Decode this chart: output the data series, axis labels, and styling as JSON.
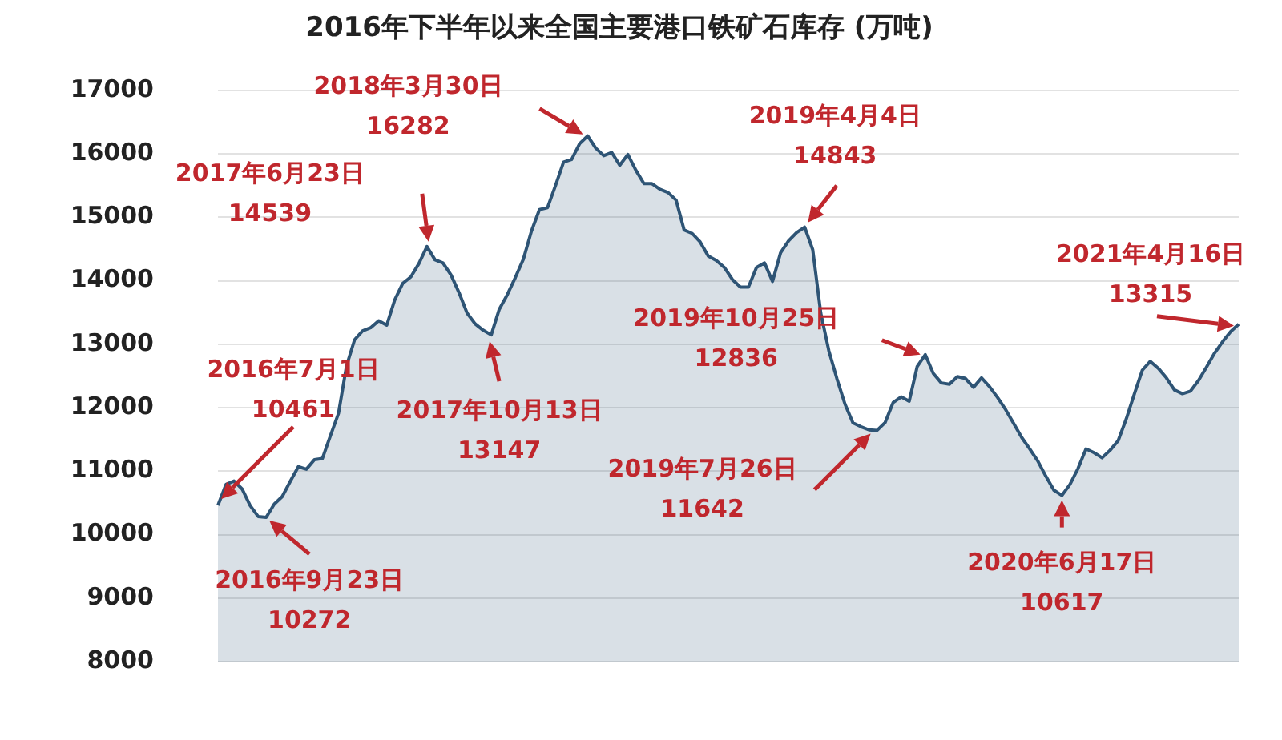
{
  "chart_data": {
    "type": "area",
    "title": "2016年下半年以来全国主要港口铁矿石库存 (万吨)",
    "categories": [
      null,
      null,
      null,
      null,
      null,
      null,
      null,
      null,
      null,
      null,
      null,
      null,
      null,
      null,
      null,
      null,
      null,
      null,
      null,
      null,
      null,
      null,
      null,
      null,
      null,
      null,
      null,
      null,
      null,
      null,
      null,
      null,
      null,
      null,
      null,
      null,
      null,
      null,
      null,
      null,
      null,
      null,
      null,
      null,
      null,
      null,
      null,
      null,
      null,
      null,
      null,
      null,
      null,
      null,
      null,
      null,
      null,
      null,
      null,
      null,
      null,
      null,
      null,
      null,
      null,
      null,
      null,
      null,
      null,
      null,
      null,
      null,
      null,
      null,
      null,
      null,
      null,
      null,
      null,
      null,
      null,
      null,
      null,
      null,
      null,
      null,
      null,
      null,
      null,
      null,
      null,
      null,
      null,
      null,
      null,
      null,
      null,
      null,
      null,
      null,
      null,
      null,
      null,
      null,
      null,
      null,
      null,
      null,
      null,
      null,
      null,
      null,
      null,
      null,
      null,
      null,
      null,
      null,
      null,
      null,
      null,
      null,
      null,
      null,
      null,
      null,
      null,
      null
    ],
    "series": [
      {
        "color": "#2e5475",
        "values": [
          10461,
          10790,
          10845,
          10720,
          10460,
          10285,
          10272,
          10480,
          10600,
          10840,
          11070,
          11030,
          11180,
          11200,
          11560,
          11910,
          12660,
          13070,
          13210,
          13260,
          13370,
          13300,
          13700,
          13960,
          14060,
          14270,
          14539,
          14330,
          14280,
          14090,
          13810,
          13490,
          13320,
          13220,
          13147,
          13550,
          13780,
          14050,
          14340,
          14780,
          15120,
          15150,
          15500,
          15870,
          15910,
          16160,
          16282,
          16090,
          15970,
          16020,
          15820,
          15990,
          15740,
          15530,
          15530,
          15440,
          15390,
          15270,
          14800,
          14745,
          14610,
          14390,
          14320,
          14210,
          14020,
          13900,
          13900,
          14210,
          14280,
          13990,
          14440,
          14630,
          14760,
          14843,
          14490,
          13490,
          12900,
          12460,
          12060,
          11760,
          11700,
          11650,
          11642,
          11765,
          12080,
          12170,
          12100,
          12650,
          12836,
          12540,
          12390,
          12370,
          12490,
          12460,
          12320,
          12470,
          12330,
          12160,
          11970,
          11750,
          11530,
          11350,
          11160,
          10920,
          10700,
          10617,
          10790,
          11040,
          11350,
          11290,
          11210,
          11330,
          11480,
          11820,
          12210,
          12590,
          12730,
          12620,
          12470,
          12280,
          12220,
          12260,
          12430,
          12640,
          12860,
          13040,
          13200,
          13315
        ]
      }
    ],
    "ylim": [
      8000,
      17000
    ],
    "yticks": [
      8000,
      9000,
      10000,
      11000,
      12000,
      13000,
      14000,
      15000,
      16000,
      17000
    ],
    "grid": "y",
    "legend": false,
    "marker": "none",
    "tick_labels": "y",
    "annotations": [
      "2016年7月1日\n10461",
      "2016年9月23日\n10272",
      "2017年6月23日\n14539",
      "2017年10月13日\n13147",
      "2018年3月30日\n16282",
      "2019年4月4日\n14843",
      "2019年7月26日\n11642",
      "2019年10月25日\n12836",
      "2020年6月17日\n10617",
      "2021年4月16日\n13315"
    ]
  }
}
